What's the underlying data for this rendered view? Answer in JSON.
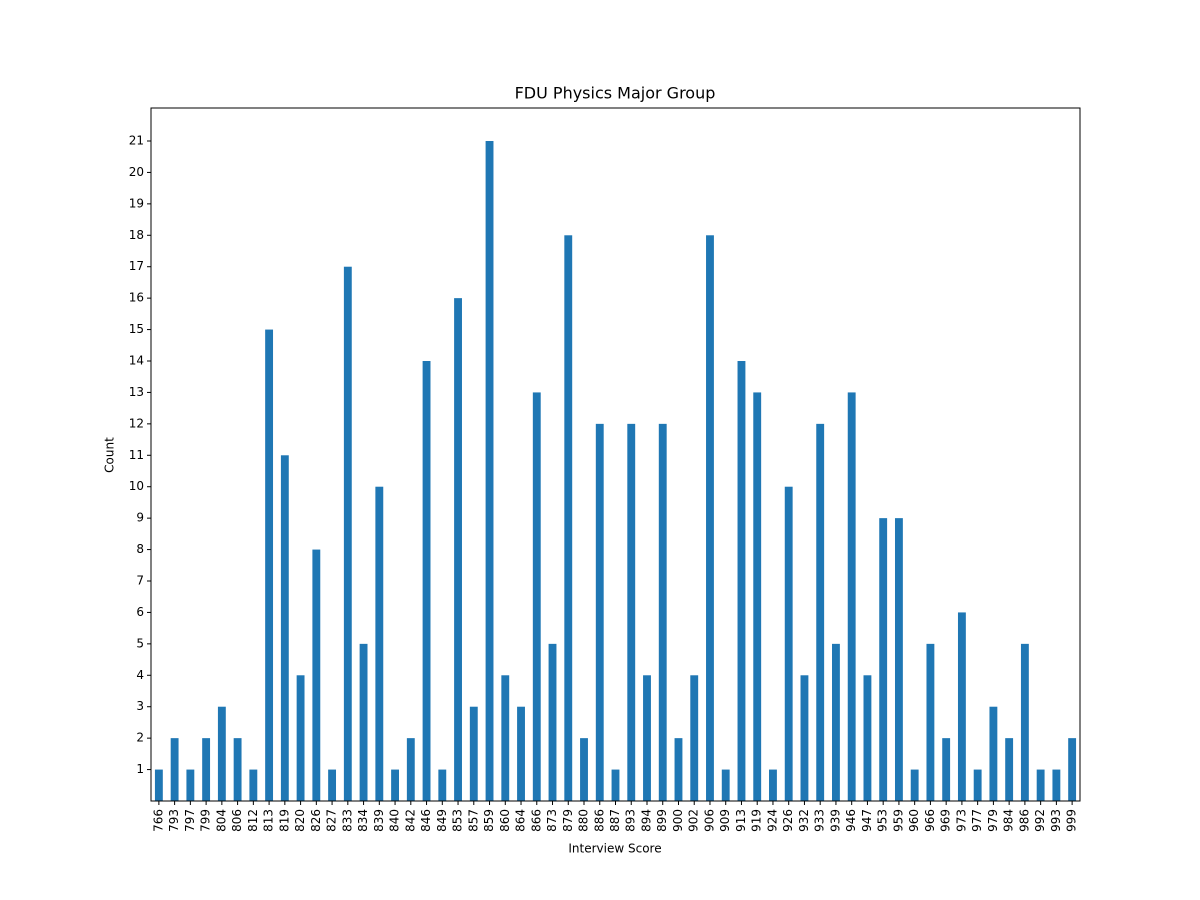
{
  "chart_data": {
    "type": "bar",
    "title": "FDU Physics Major Group",
    "x_label": "Interview Score",
    "y_label": "Count",
    "categories": [
      "766",
      "793",
      "797",
      "799",
      "804",
      "806",
      "812",
      "813",
      "819",
      "820",
      "826",
      "827",
      "833",
      "834",
      "839",
      "840",
      "842",
      "846",
      "849",
      "853",
      "857",
      "859",
      "860",
      "864",
      "866",
      "873",
      "879",
      "880",
      "886",
      "887",
      "893",
      "894",
      "899",
      "900",
      "902",
      "906",
      "909",
      "913",
      "919",
      "924",
      "926",
      "932",
      "933",
      "939",
      "946",
      "947",
      "953",
      "959",
      "960",
      "966",
      "969",
      "973",
      "977",
      "979",
      "984",
      "986",
      "992",
      "993",
      "999"
    ],
    "values": [
      1,
      2,
      1,
      2,
      3,
      2,
      1,
      15,
      11,
      4,
      8,
      1,
      17,
      5,
      10,
      1,
      2,
      14,
      1,
      16,
      3,
      21,
      4,
      3,
      13,
      5,
      18,
      2,
      12,
      1,
      12,
      4,
      12,
      2,
      4,
      18,
      1,
      14,
      13,
      1,
      10,
      4,
      12,
      5,
      13,
      4,
      9,
      9,
      1,
      5,
      2,
      6,
      1,
      3,
      2,
      5,
      1,
      1,
      2
    ],
    "color": "#1f77b4",
    "ylim": [
      0,
      22.05
    ],
    "yticks": [
      1,
      2,
      3,
      4,
      5,
      6,
      7,
      8,
      9,
      10,
      11,
      12,
      13,
      14,
      15,
      16,
      17,
      18,
      19,
      20,
      21
    ],
    "grid": false
  }
}
